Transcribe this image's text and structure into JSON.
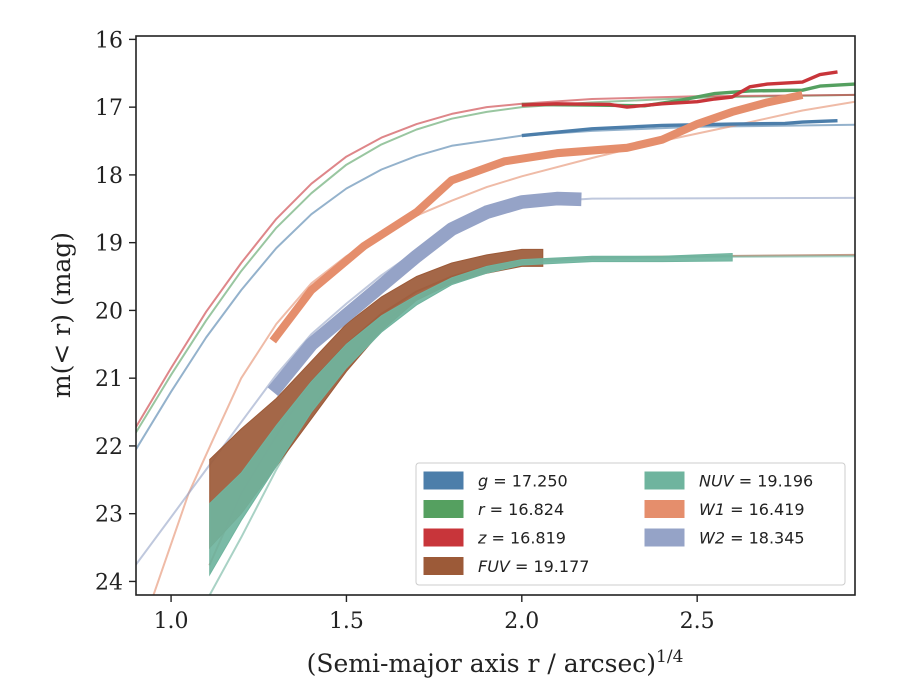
{
  "chart_data": {
    "type": "line",
    "title": "",
    "xlabel": "(Semi-major axis r / arcsec)",
    "xlabel_exponent": "1/4",
    "ylabel": "m(< r) (mag)",
    "xlim": [
      0.9,
      2.95
    ],
    "ylim": [
      24.2,
      15.95
    ],
    "y_inverted": true,
    "grid": false,
    "legend_position": "lower-right",
    "xticks": [
      {
        "value": 1.0,
        "label": "1.0"
      },
      {
        "value": 1.5,
        "label": "1.5"
      },
      {
        "value": 2.0,
        "label": "2.0"
      },
      {
        "value": 2.5,
        "label": "2.5"
      }
    ],
    "yticks": [
      {
        "value": 16,
        "label": "16"
      },
      {
        "value": 17,
        "label": "17"
      },
      {
        "value": 18,
        "label": "18"
      },
      {
        "value": 19,
        "label": "19"
      },
      {
        "value": 20,
        "label": "20"
      },
      {
        "value": 21,
        "label": "21"
      },
      {
        "value": 22,
        "label": "22"
      },
      {
        "value": 23,
        "label": "23"
      },
      {
        "value": 24,
        "label": "24"
      }
    ],
    "series": [
      {
        "name": "g = 17.250",
        "legend_var": "g",
        "legend_value": "17.250",
        "color": "#4c7eaa",
        "band_width": 0.05,
        "data": [
          [
            2.0,
            17.42
          ],
          [
            2.2,
            17.32
          ],
          [
            2.4,
            17.27
          ],
          [
            2.6,
            17.25
          ],
          [
            2.75,
            17.24
          ],
          [
            2.8,
            17.22
          ],
          [
            2.9,
            17.2
          ]
        ],
        "model": [
          [
            0.9,
            22.05
          ],
          [
            1.0,
            21.2
          ],
          [
            1.1,
            20.4
          ],
          [
            1.2,
            19.7
          ],
          [
            1.3,
            19.08
          ],
          [
            1.4,
            18.58
          ],
          [
            1.5,
            18.2
          ],
          [
            1.6,
            17.92
          ],
          [
            1.7,
            17.72
          ],
          [
            1.8,
            17.57
          ],
          [
            2.0,
            17.42
          ],
          [
            2.2,
            17.35
          ],
          [
            2.5,
            17.29
          ],
          [
            2.95,
            17.26
          ]
        ]
      },
      {
        "name": "r = 16.824",
        "legend_var": "r",
        "legend_value": "16.824",
        "color": "#55a060",
        "band_width": 0.05,
        "data": [
          [
            2.0,
            16.96
          ],
          [
            2.2,
            16.97
          ],
          [
            2.35,
            16.98
          ],
          [
            2.45,
            16.9
          ],
          [
            2.55,
            16.8
          ],
          [
            2.65,
            16.76
          ],
          [
            2.8,
            16.75
          ],
          [
            2.85,
            16.69
          ],
          [
            2.95,
            16.66
          ]
        ],
        "model": [
          [
            0.9,
            21.8
          ],
          [
            1.0,
            20.95
          ],
          [
            1.1,
            20.15
          ],
          [
            1.2,
            19.42
          ],
          [
            1.3,
            18.78
          ],
          [
            1.4,
            18.27
          ],
          [
            1.5,
            17.85
          ],
          [
            1.6,
            17.55
          ],
          [
            1.7,
            17.33
          ],
          [
            1.8,
            17.17
          ],
          [
            1.9,
            17.07
          ],
          [
            2.0,
            17.0
          ],
          [
            2.2,
            16.93
          ],
          [
            2.5,
            16.86
          ],
          [
            2.95,
            16.82
          ]
        ]
      },
      {
        "name": "z = 16.819",
        "legend_var": "z",
        "legend_value": "16.819",
        "color": "#c8353a",
        "band_width": 0.05,
        "data": [
          [
            2.0,
            16.97
          ],
          [
            2.1,
            16.95
          ],
          [
            2.25,
            16.96
          ],
          [
            2.3,
            17.0
          ],
          [
            2.4,
            16.95
          ],
          [
            2.5,
            16.92
          ],
          [
            2.55,
            16.88
          ],
          [
            2.6,
            16.85
          ],
          [
            2.65,
            16.7
          ],
          [
            2.7,
            16.66
          ],
          [
            2.8,
            16.63
          ],
          [
            2.85,
            16.52
          ],
          [
            2.9,
            16.48
          ]
        ],
        "model": [
          [
            0.9,
            21.72
          ],
          [
            1.0,
            20.85
          ],
          [
            1.1,
            20.02
          ],
          [
            1.2,
            19.3
          ],
          [
            1.3,
            18.65
          ],
          [
            1.4,
            18.13
          ],
          [
            1.5,
            17.73
          ],
          [
            1.6,
            17.45
          ],
          [
            1.7,
            17.25
          ],
          [
            1.8,
            17.1
          ],
          [
            1.9,
            17.0
          ],
          [
            2.0,
            16.95
          ],
          [
            2.2,
            16.88
          ],
          [
            2.5,
            16.84
          ],
          [
            2.95,
            16.82
          ]
        ]
      },
      {
        "name": "FUV = 19.177",
        "legend_var": "FUV",
        "legend_value": "19.177",
        "color": "#9c5a38",
        "band": true,
        "upper": [
          [
            1.11,
            22.2
          ],
          [
            1.2,
            21.75
          ],
          [
            1.3,
            21.3
          ],
          [
            1.4,
            20.75
          ],
          [
            1.5,
            20.2
          ],
          [
            1.6,
            19.8
          ],
          [
            1.7,
            19.5
          ],
          [
            1.8,
            19.3
          ],
          [
            1.9,
            19.18
          ],
          [
            2.0,
            19.1
          ],
          [
            2.06,
            19.1
          ]
        ],
        "lower": [
          [
            2.06,
            19.35
          ],
          [
            2.0,
            19.35
          ],
          [
            1.9,
            19.45
          ],
          [
            1.8,
            19.6
          ],
          [
            1.7,
            19.85
          ],
          [
            1.6,
            20.3
          ],
          [
            1.5,
            20.9
          ],
          [
            1.4,
            21.6
          ],
          [
            1.3,
            22.3
          ],
          [
            1.2,
            23.0
          ],
          [
            1.11,
            23.5
          ]
        ],
        "model": [
          [
            1.11,
            23.75
          ],
          [
            1.2,
            22.7
          ],
          [
            1.3,
            21.85
          ],
          [
            1.4,
            21.05
          ],
          [
            1.5,
            20.5
          ],
          [
            1.6,
            20.05
          ],
          [
            1.7,
            19.72
          ],
          [
            1.8,
            19.5
          ],
          [
            1.9,
            19.35
          ],
          [
            2.0,
            19.27
          ],
          [
            2.2,
            19.22
          ],
          [
            2.5,
            19.2
          ],
          [
            2.95,
            19.18
          ]
        ]
      },
      {
        "name": "NUV = 19.196",
        "legend_var": "NUV",
        "legend_value": "19.196",
        "color": "#6fb49e",
        "band": true,
        "upper": [
          [
            1.11,
            22.85
          ],
          [
            1.2,
            22.4
          ],
          [
            1.3,
            21.7
          ],
          [
            1.4,
            21.05
          ],
          [
            1.5,
            20.5
          ],
          [
            1.6,
            20.08
          ],
          [
            1.7,
            19.78
          ],
          [
            1.8,
            19.52
          ],
          [
            1.9,
            19.35
          ],
          [
            2.0,
            19.25
          ],
          [
            2.2,
            19.2
          ],
          [
            2.4,
            19.2
          ],
          [
            2.6,
            19.16
          ]
        ],
        "lower": [
          [
            2.6,
            19.27
          ],
          [
            2.4,
            19.28
          ],
          [
            2.2,
            19.28
          ],
          [
            2.0,
            19.33
          ],
          [
            1.9,
            19.45
          ],
          [
            1.8,
            19.62
          ],
          [
            1.7,
            19.92
          ],
          [
            1.6,
            20.32
          ],
          [
            1.5,
            20.85
          ],
          [
            1.4,
            21.5
          ],
          [
            1.3,
            22.3
          ],
          [
            1.2,
            23.1
          ],
          [
            1.11,
            23.9
          ]
        ],
        "model": [
          [
            1.11,
            24.2
          ],
          [
            1.2,
            23.35
          ],
          [
            1.3,
            22.35
          ],
          [
            1.4,
            21.45
          ],
          [
            1.5,
            20.75
          ],
          [
            1.6,
            20.2
          ],
          [
            1.7,
            19.82
          ],
          [
            1.8,
            19.55
          ],
          [
            1.9,
            19.4
          ],
          [
            2.0,
            19.3
          ],
          [
            2.2,
            19.24
          ],
          [
            2.5,
            19.21
          ],
          [
            2.95,
            19.2
          ]
        ]
      },
      {
        "name": "W1 = 16.419",
        "legend_var": "W1",
        "legend_value": "16.419",
        "color": "#e58e6c",
        "band_width": 0.12,
        "data": [
          [
            1.29,
            20.45
          ],
          [
            1.4,
            19.7
          ],
          [
            1.55,
            19.05
          ],
          [
            1.7,
            18.55
          ],
          [
            1.8,
            18.08
          ],
          [
            1.95,
            17.8
          ],
          [
            2.1,
            17.68
          ],
          [
            2.3,
            17.6
          ],
          [
            2.4,
            17.48
          ],
          [
            2.5,
            17.25
          ],
          [
            2.6,
            17.07
          ],
          [
            2.7,
            16.93
          ],
          [
            2.8,
            16.82
          ]
        ],
        "model": [
          [
            0.95,
            24.2
          ],
          [
            1.05,
            22.7
          ],
          [
            1.12,
            21.9
          ],
          [
            1.2,
            21.0
          ],
          [
            1.3,
            20.2
          ],
          [
            1.4,
            19.6
          ],
          [
            1.5,
            19.2
          ],
          [
            1.6,
            18.88
          ],
          [
            1.7,
            18.6
          ],
          [
            1.8,
            18.38
          ],
          [
            1.9,
            18.18
          ],
          [
            2.0,
            18.02
          ],
          [
            2.2,
            17.75
          ],
          [
            2.4,
            17.5
          ],
          [
            2.6,
            17.28
          ],
          [
            2.8,
            17.05
          ],
          [
            2.95,
            16.92
          ]
        ]
      },
      {
        "name": "W2 = 18.345",
        "legend_var": "W2",
        "legend_value": "18.345",
        "color": "#95a3c7",
        "band_width": 0.2,
        "data": [
          [
            1.29,
            21.2
          ],
          [
            1.4,
            20.5
          ],
          [
            1.55,
            19.85
          ],
          [
            1.7,
            19.2
          ],
          [
            1.8,
            18.8
          ],
          [
            1.9,
            18.55
          ],
          [
            2.0,
            18.4
          ],
          [
            2.1,
            18.35
          ],
          [
            2.17,
            18.36
          ]
        ],
        "model": [
          [
            0.9,
            23.75
          ],
          [
            1.0,
            23.05
          ],
          [
            1.1,
            22.35
          ],
          [
            1.2,
            21.65
          ],
          [
            1.3,
            20.95
          ],
          [
            1.4,
            20.35
          ],
          [
            1.5,
            19.9
          ],
          [
            1.6,
            19.48
          ],
          [
            1.7,
            19.12
          ],
          [
            1.8,
            18.82
          ],
          [
            1.9,
            18.6
          ],
          [
            2.0,
            18.45
          ],
          [
            2.1,
            18.38
          ],
          [
            2.2,
            18.35
          ],
          [
            2.95,
            18.34
          ]
        ]
      }
    ]
  }
}
